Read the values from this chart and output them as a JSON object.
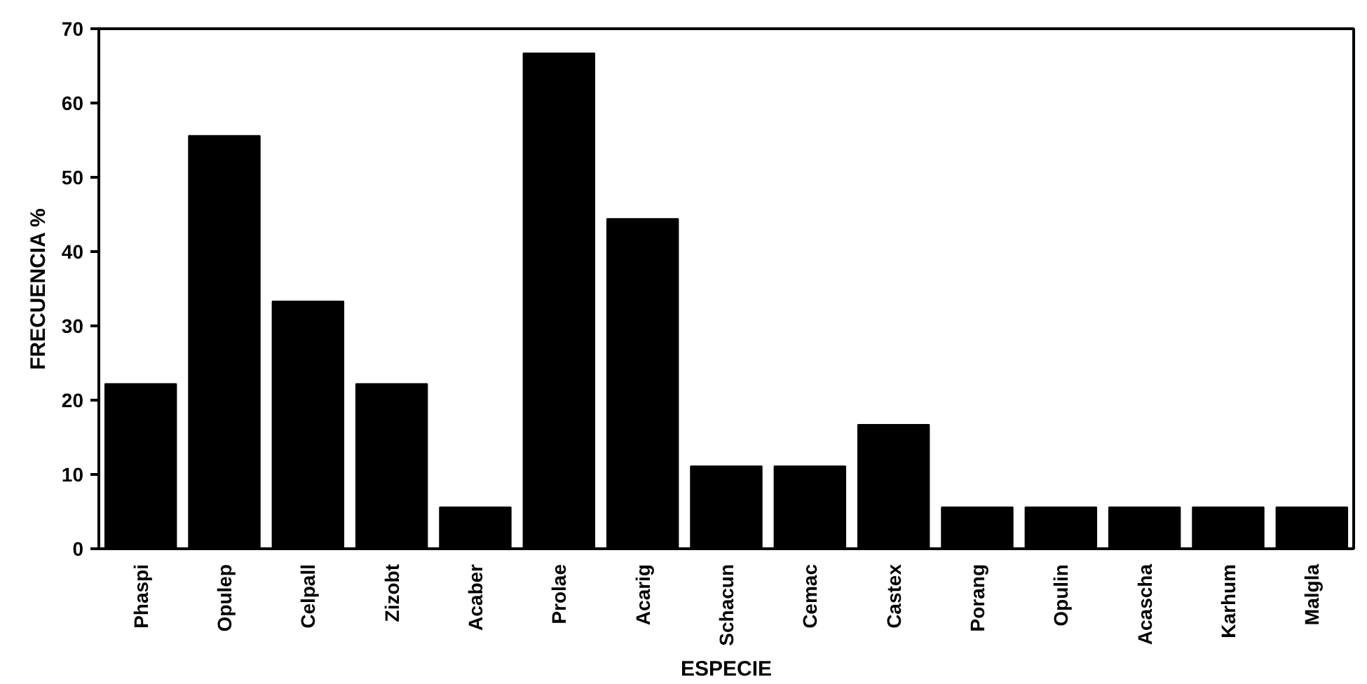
{
  "chart_data": {
    "type": "bar",
    "xlabel": "ESPECIE",
    "ylabel": "FRECUENCIA %",
    "categories": [
      "Phaspi",
      "Opulep",
      "Celpall",
      "Zizobt",
      "Acaber",
      "Prolae",
      "Acarig",
      "Schacun",
      "Cemac",
      "Castex",
      "Porang",
      "Opulin",
      "Acascha",
      "Karhum",
      "Malgla"
    ],
    "values": [
      22.2,
      55.6,
      33.3,
      22.2,
      5.6,
      66.7,
      44.4,
      11.1,
      11.1,
      16.7,
      5.6,
      5.6,
      5.6,
      5.6,
      5.6
    ],
    "color": "#000000",
    "ylim": [
      0,
      70
    ],
    "yticks": [
      0,
      10,
      20,
      30,
      40,
      50,
      60,
      70
    ],
    "grid": false
  }
}
